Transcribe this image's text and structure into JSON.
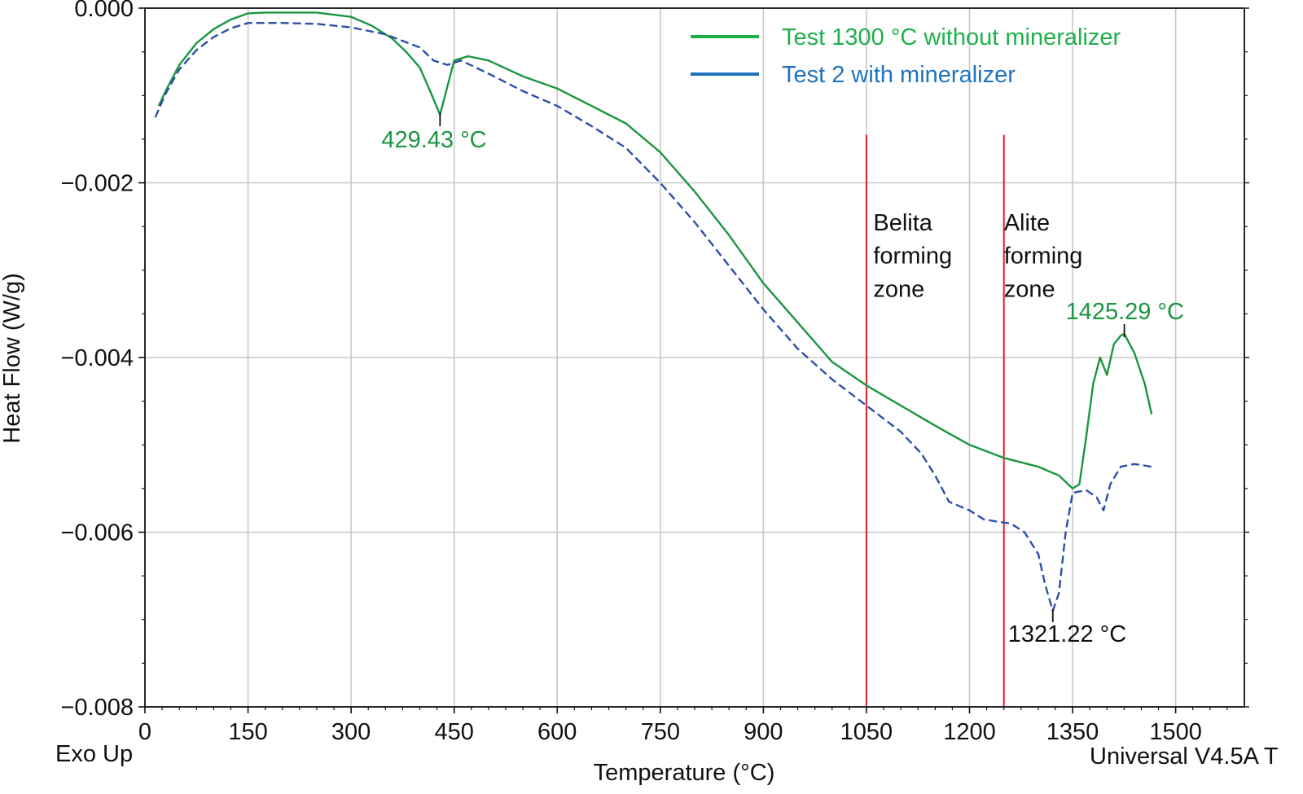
{
  "chart_data": {
    "type": "line",
    "title": "",
    "xlabel": "Temperature (°C)",
    "ylabel": "Heat Flow (W/g)",
    "xlim": [
      0,
      1600
    ],
    "ylim": [
      -0.008,
      0.0
    ],
    "x_ticks": [
      0,
      150,
      300,
      450,
      600,
      750,
      900,
      1050,
      1200,
      1350,
      1500
    ],
    "x_tick_labels": [
      "0",
      "150",
      "300",
      "450",
      "600",
      "750",
      "900",
      "1050",
      "1200",
      "1350",
      "1500"
    ],
    "y_ticks": [
      0.0,
      -0.002,
      -0.004,
      -0.006,
      -0.008
    ],
    "y_tick_labels": [
      "0.000",
      "−0.002",
      "−0.004",
      "−0.006",
      "−0.008"
    ],
    "grid": true,
    "legend_position": "top-right",
    "corner_left_label": "Exo Up",
    "corner_right_label": "Universal V4.5A T",
    "series": [
      {
        "name": "Test 1300 °C without mineralizer",
        "color": "#1a9641",
        "style": "solid",
        "x": [
          20,
          30,
          50,
          75,
          100,
          125,
          150,
          175,
          200,
          250,
          300,
          330,
          360,
          380,
          400,
          415,
          429.43,
          440,
          450,
          470,
          500,
          550,
          600,
          650,
          700,
          750,
          800,
          850,
          900,
          950,
          1000,
          1050,
          1100,
          1150,
          1200,
          1250,
          1300,
          1330,
          1350,
          1360,
          1370,
          1380,
          1390,
          1400,
          1410,
          1420,
          1425.29,
          1440,
          1455,
          1465
        ],
        "y": [
          -0.00112,
          -0.00095,
          -0.00065,
          -0.0004,
          -0.00024,
          -0.00013,
          -6e-05,
          -5e-05,
          -5e-05,
          -5e-05,
          -0.0001,
          -0.0002,
          -0.00035,
          -0.0005,
          -0.00068,
          -0.00095,
          -0.00122,
          -0.0009,
          -0.0006,
          -0.00055,
          -0.0006,
          -0.00078,
          -0.00092,
          -0.00112,
          -0.00132,
          -0.00165,
          -0.0021,
          -0.0026,
          -0.00315,
          -0.0036,
          -0.00405,
          -0.00432,
          -0.00455,
          -0.00478,
          -0.005,
          -0.00515,
          -0.00525,
          -0.00535,
          -0.0055,
          -0.00545,
          -0.0049,
          -0.0043,
          -0.004,
          -0.0042,
          -0.00385,
          -0.00375,
          -0.00373,
          -0.00395,
          -0.0043,
          -0.00465
        ]
      },
      {
        "name": "Test 2 with mineralizer",
        "color": "#2c4fa8",
        "style": "dashed",
        "x": [
          15,
          30,
          50,
          75,
          100,
          125,
          150,
          200,
          250,
          300,
          350,
          400,
          420,
          440,
          460,
          500,
          550,
          600,
          650,
          700,
          750,
          800,
          850,
          900,
          950,
          1000,
          1050,
          1100,
          1130,
          1150,
          1170,
          1200,
          1220,
          1240,
          1260,
          1280,
          1300,
          1310,
          1321.22,
          1330,
          1340,
          1350,
          1370,
          1385,
          1395,
          1405,
          1420,
          1440,
          1465
        ],
        "y": [
          -0.00125,
          -0.00098,
          -0.0007,
          -0.00048,
          -0.00033,
          -0.00023,
          -0.00017,
          -0.00017,
          -0.00018,
          -0.00022,
          -0.0003,
          -0.00045,
          -0.0006,
          -0.00065,
          -0.0006,
          -0.00075,
          -0.00095,
          -0.00112,
          -0.00135,
          -0.0016,
          -0.002,
          -0.00245,
          -0.00295,
          -0.00345,
          -0.0039,
          -0.00425,
          -0.00455,
          -0.00485,
          -0.0051,
          -0.00535,
          -0.00565,
          -0.00575,
          -0.00585,
          -0.00588,
          -0.0059,
          -0.006,
          -0.00625,
          -0.0066,
          -0.0069,
          -0.0067,
          -0.006,
          -0.00555,
          -0.00552,
          -0.0056,
          -0.00575,
          -0.00545,
          -0.00525,
          -0.00522,
          -0.00525
        ]
      }
    ],
    "vertical_lines": [
      {
        "x": 1050,
        "color": "#e02020"
      },
      {
        "x": 1250,
        "color": "#e02020"
      }
    ],
    "zones": [
      {
        "lines": [
          "Belita",
          "forming",
          "zone"
        ],
        "x": 1060
      },
      {
        "lines": [
          "Alite",
          "forming",
          "zone"
        ],
        "x": 1250
      }
    ],
    "annotations": [
      {
        "text": "429.43 °C",
        "x": 429.43,
        "y": -0.00122,
        "color": "#1a9641"
      },
      {
        "text": "1321.22 °C",
        "x": 1321.22,
        "y": -0.0069,
        "color": "#111111"
      },
      {
        "text": "1425.29 °C",
        "x": 1425.29,
        "y": -0.00373,
        "color": "#1a9641"
      }
    ]
  }
}
